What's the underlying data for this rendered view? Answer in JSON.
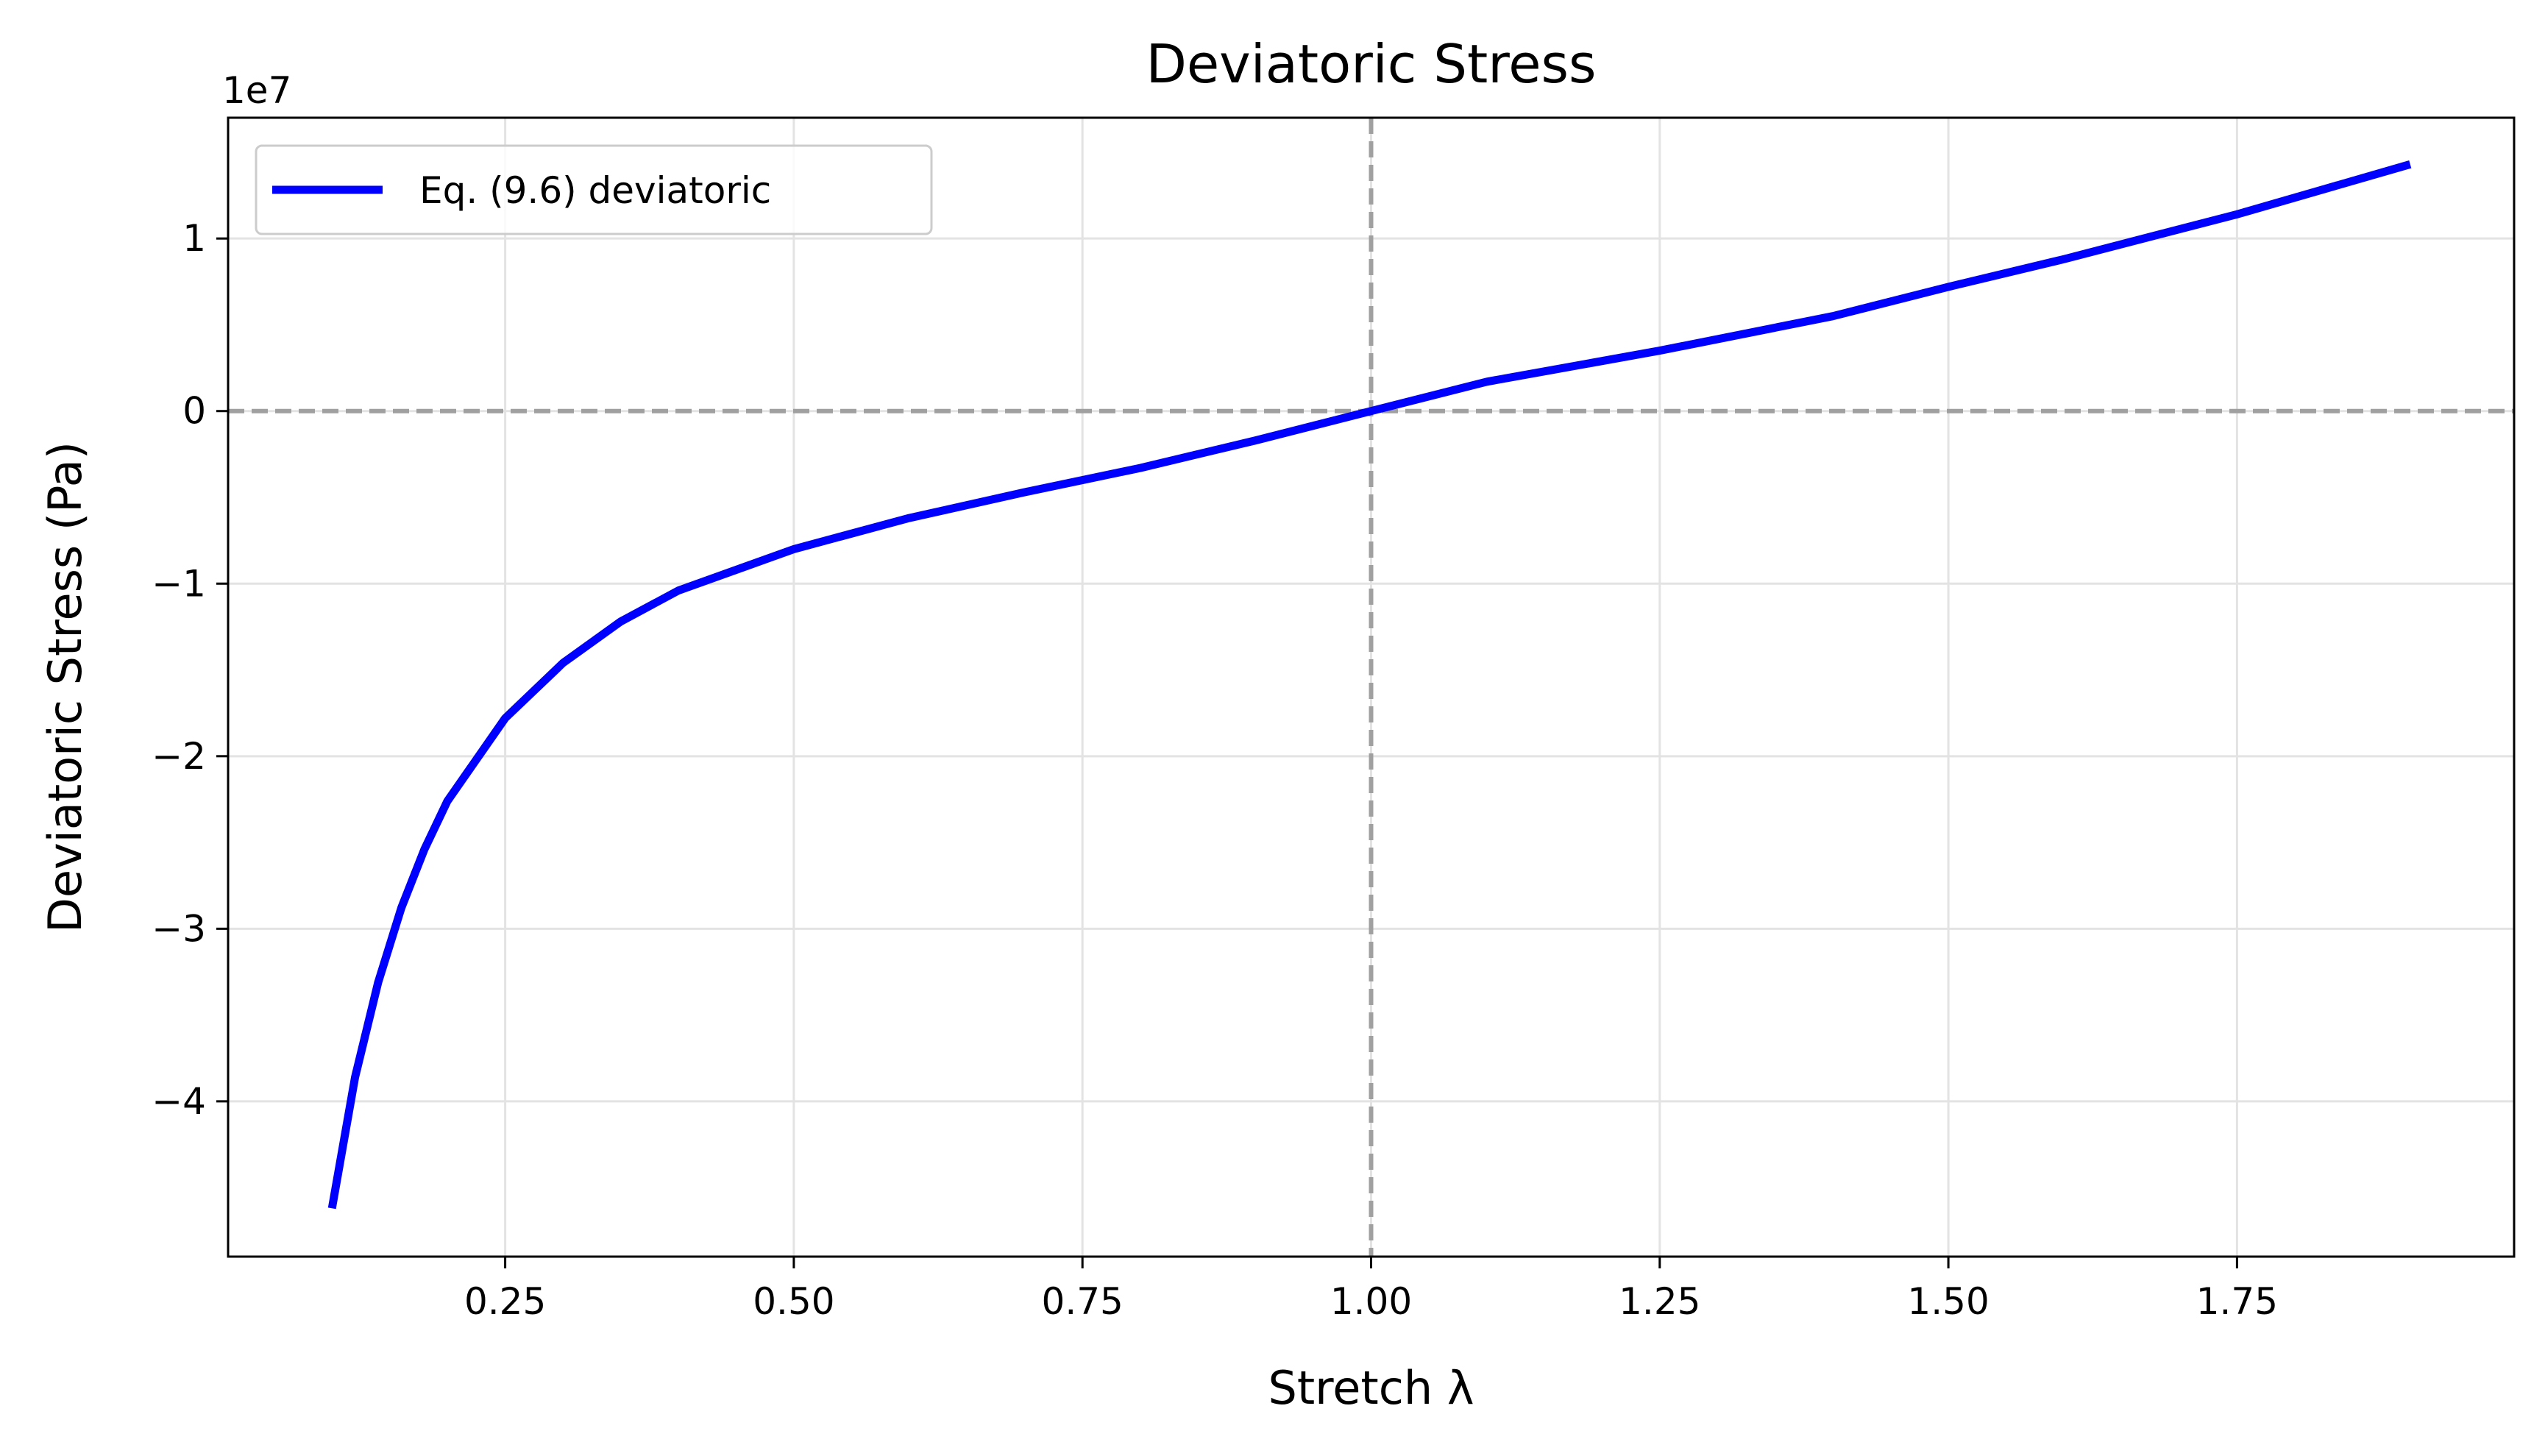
{
  "chart_data": {
    "type": "line",
    "title": "Deviatoric Stress",
    "xlabel": "Stretch λ",
    "ylabel": "Deviatoric Stress (Pa)",
    "y_offset_label": "1e7",
    "xlim": [
      0.01,
      1.99
    ],
    "ylim": [
      -4.9,
      1.7
    ],
    "x_ticks": [
      0.25,
      0.5,
      0.75,
      1.0,
      1.25,
      1.5,
      1.75
    ],
    "x_tick_labels": [
      "0.25",
      "0.50",
      "0.75",
      "1.00",
      "1.25",
      "1.50",
      "1.75"
    ],
    "y_ticks": [
      1,
      0,
      -1,
      -2,
      -3,
      -4
    ],
    "y_tick_labels": [
      "1",
      "0",
      "−1",
      "−2",
      "−3",
      "−4"
    ],
    "y_unit_scale": "1e7",
    "grid": true,
    "reference_lines": {
      "vertical_x": 1.0,
      "horizontal_y": 0,
      "style": "dashed",
      "color": "#a0a0a0"
    },
    "legend_position": "top-left",
    "series": [
      {
        "name": "Eq. (9.6) deviatoric",
        "color": "#0000ff",
        "x": [
          0.1,
          0.12,
          0.14,
          0.16,
          0.18,
          0.2,
          0.25,
          0.3,
          0.35,
          0.4,
          0.5,
          0.6,
          0.7,
          0.8,
          0.9,
          1.0,
          1.1,
          1.25,
          1.4,
          1.5,
          1.6,
          1.75,
          1.9
        ],
        "y": [
          -4.62,
          -3.86,
          -3.31,
          -2.88,
          -2.54,
          -2.26,
          -1.78,
          -1.46,
          -1.22,
          -1.04,
          -0.8,
          -0.62,
          -0.47,
          -0.33,
          -0.17,
          0.0,
          0.17,
          0.35,
          0.55,
          0.72,
          0.88,
          1.14,
          1.43
        ]
      }
    ]
  }
}
